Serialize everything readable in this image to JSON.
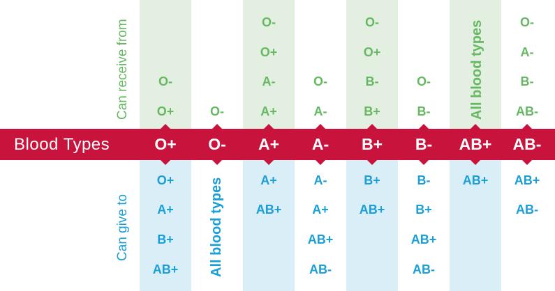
{
  "title": "Blood Types",
  "labels": {
    "receive": "Can receive from",
    "give": "Can give to"
  },
  "colors": {
    "bar": "#c8143c",
    "receive_text": "#66b862",
    "receive_band": "#e3efe0",
    "give_text": "#1a9fd6",
    "give_band": "#d9eef6"
  },
  "columns": [
    {
      "type": "O+",
      "receive": [
        "O-",
        "O+"
      ],
      "give": [
        "O+",
        "A+",
        "B+",
        "AB+"
      ]
    },
    {
      "type": "O-",
      "receive": [
        "O-"
      ],
      "give": [
        "All blood types"
      ]
    },
    {
      "type": "A+",
      "receive": [
        "O-",
        "O+",
        "A-",
        "A+"
      ],
      "give": [
        "A+",
        "AB+"
      ]
    },
    {
      "type": "A-",
      "receive": [
        "O-",
        "A-"
      ],
      "give": [
        "A-",
        "A+",
        "AB+",
        "AB-"
      ]
    },
    {
      "type": "B+",
      "receive": [
        "O-",
        "O+",
        "B-",
        "B+"
      ],
      "give": [
        "B+",
        "AB+"
      ]
    },
    {
      "type": "B-",
      "receive": [
        "O-",
        "B-"
      ],
      "give": [
        "B-",
        "B+",
        "AB+",
        "AB-"
      ]
    },
    {
      "type": "AB+",
      "receive": [
        "All blood types"
      ],
      "give": [
        "AB+"
      ]
    },
    {
      "type": "AB-",
      "receive": [
        "O-",
        "A-",
        "B-",
        "AB-"
      ],
      "give": [
        "AB+",
        "AB-"
      ]
    }
  ]
}
